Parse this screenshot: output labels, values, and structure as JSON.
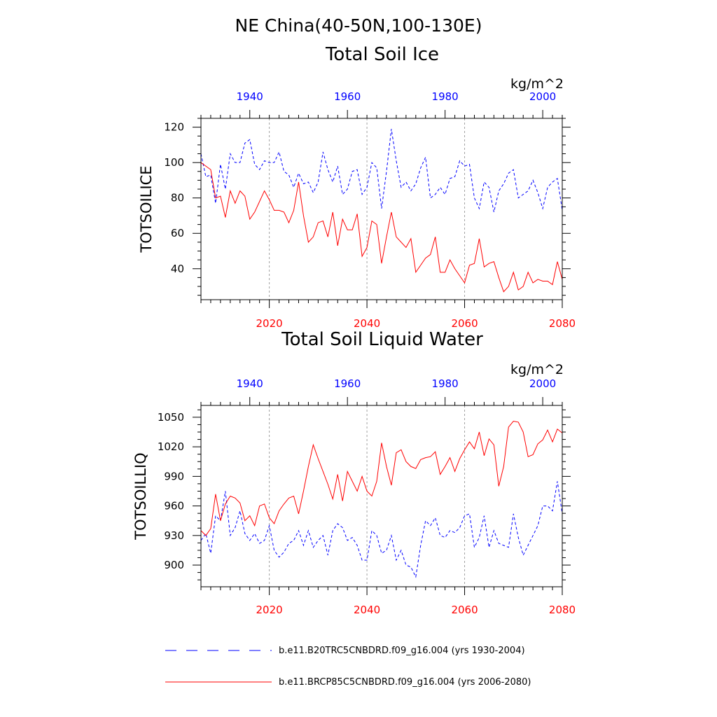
{
  "figure": {
    "region_title": "NE China(40-50N,100-130E)"
  },
  "colors": {
    "historical": "#0000ff",
    "future": "#ff0000",
    "axis": "#000000",
    "grid": "#a0a0a0"
  },
  "legend": {
    "historical_label": "b.e11.B20TRC5CNBDRD.f09_g16.004 (yrs 1930-2004)",
    "future_label": "b.e11.BRCP85C5CNBDRD.f09_g16.004 (yrs 2006-2080)"
  },
  "chart_data": [
    {
      "type": "line",
      "title": "Total Soil Ice",
      "units": "kg/m^2",
      "ylabel": "TOTSOILICE",
      "ylim": [
        22.5,
        125
      ],
      "yticks": [
        40,
        60,
        80,
        100,
        120
      ],
      "bottom_axis": {
        "xlim": [
          2006,
          2080
        ],
        "ticks": [
          2020,
          2040,
          2060,
          2080
        ]
      },
      "top_axis": {
        "xlim": [
          1930,
          2004
        ],
        "ticks": [
          1940,
          1960,
          1980,
          2000
        ]
      },
      "grid_x": [
        2020,
        2040,
        2060
      ],
      "series": [
        {
          "name": "b.e11.B20TRC5CNBDRD.f09_g16.004 (yrs 1930-2004)",
          "axis": "top",
          "style": "dashed",
          "color": "#0000ff",
          "x": [
            1930,
            1931,
            1932,
            1933,
            1934,
            1935,
            1936,
            1937,
            1938,
            1939,
            1940,
            1941,
            1942,
            1943,
            1944,
            1945,
            1946,
            1947,
            1948,
            1949,
            1950,
            1951,
            1952,
            1953,
            1954,
            1955,
            1956,
            1957,
            1958,
            1959,
            1960,
            1961,
            1962,
            1963,
            1964,
            1965,
            1966,
            1967,
            1968,
            1969,
            1970,
            1971,
            1972,
            1973,
            1974,
            1975,
            1976,
            1977,
            1978,
            1979,
            1980,
            1981,
            1982,
            1983,
            1984,
            1985,
            1986,
            1987,
            1988,
            1989,
            1990,
            1991,
            1992,
            1993,
            1994,
            1995,
            1996,
            1997,
            1998,
            1999,
            2000,
            2001,
            2002,
            2003,
            2004
          ],
          "values": [
            105,
            92,
            93,
            77,
            99,
            85,
            105,
            100,
            100,
            111,
            113,
            99,
            96,
            101,
            100,
            100,
            106,
            95,
            93,
            86,
            94,
            88,
            89,
            83,
            89,
            106,
            96,
            89,
            98,
            82,
            85,
            95,
            96,
            82,
            86,
            100,
            97,
            74,
            95,
            119,
            101,
            86,
            89,
            84,
            88,
            97,
            103,
            80,
            82,
            86,
            82,
            91,
            92,
            101,
            98,
            99,
            80,
            74,
            89,
            86,
            72,
            84,
            88,
            94,
            96,
            80,
            82,
            84,
            90,
            83,
            74,
            86,
            89,
            91,
            73
          ]
        },
        {
          "name": "b.e11.BRCP85C5CNBDRD.f09_g16.004 (yrs 2006-2080)",
          "axis": "bottom",
          "style": "solid",
          "color": "#ff0000",
          "x": [
            2006,
            2007,
            2008,
            2009,
            2010,
            2011,
            2012,
            2013,
            2014,
            2015,
            2016,
            2017,
            2018,
            2019,
            2020,
            2021,
            2022,
            2023,
            2024,
            2025,
            2026,
            2027,
            2028,
            2029,
            2030,
            2031,
            2032,
            2033,
            2034,
            2035,
            2036,
            2037,
            2038,
            2039,
            2040,
            2041,
            2042,
            2043,
            2044,
            2045,
            2046,
            2047,
            2048,
            2049,
            2050,
            2051,
            2052,
            2053,
            2054,
            2055,
            2056,
            2057,
            2058,
            2059,
            2060,
            2061,
            2062,
            2063,
            2064,
            2065,
            2066,
            2067,
            2068,
            2069,
            2070,
            2071,
            2072,
            2073,
            2074,
            2075,
            2076,
            2077,
            2078,
            2079,
            2080
          ],
          "values": [
            100,
            98,
            96,
            80,
            81,
            69,
            84,
            77,
            84,
            81,
            68,
            72,
            78,
            84,
            79,
            73,
            73,
            72,
            66,
            73,
            89,
            70,
            55,
            58,
            66,
            67,
            58,
            72,
            53,
            68,
            62,
            62,
            71,
            47,
            52,
            67,
            65,
            43,
            58,
            72,
            58,
            55,
            52,
            57,
            38,
            42,
            46,
            48,
            58,
            38,
            38,
            45,
            40,
            36,
            32,
            42,
            43,
            57,
            41,
            43,
            44,
            35,
            27,
            30,
            38,
            28,
            30,
            38,
            32,
            34,
            33,
            33,
            31,
            44,
            34
          ]
        }
      ]
    },
    {
      "type": "line",
      "title": "Total Soil Liquid Water",
      "units": "kg/m^2",
      "ylabel": "TOTSOILLIQ",
      "ylim": [
        878,
        1062
      ],
      "yticks": [
        900,
        930,
        960,
        990,
        1020,
        1050
      ],
      "bottom_axis": {
        "xlim": [
          2006,
          2080
        ],
        "ticks": [
          2020,
          2040,
          2060,
          2080
        ]
      },
      "top_axis": {
        "xlim": [
          1930,
          2004
        ],
        "ticks": [
          1940,
          1960,
          1980,
          2000
        ]
      },
      "grid_x": [
        2020,
        2040,
        2060
      ],
      "series": [
        {
          "name": "b.e11.B20TRC5CNBDRD.f09_g16.004 (yrs 1930-2004)",
          "axis": "top",
          "style": "dashed",
          "color": "#0000ff",
          "x": [
            1930,
            1931,
            1932,
            1933,
            1934,
            1935,
            1936,
            1937,
            1938,
            1939,
            1940,
            1941,
            1942,
            1943,
            1944,
            1945,
            1946,
            1947,
            1948,
            1949,
            1950,
            1951,
            1952,
            1953,
            1954,
            1955,
            1956,
            1957,
            1958,
            1959,
            1960,
            1961,
            1962,
            1963,
            1964,
            1965,
            1966,
            1967,
            1968,
            1969,
            1970,
            1971,
            1972,
            1973,
            1974,
            1975,
            1976,
            1977,
            1978,
            1979,
            1980,
            1981,
            1982,
            1983,
            1984,
            1985,
            1986,
            1987,
            1988,
            1989,
            1990,
            1991,
            1992,
            1993,
            1994,
            1995,
            1996,
            1997,
            1998,
            1999,
            2000,
            2001,
            2002,
            2003,
            2004
          ],
          "values": [
            925,
            932,
            912,
            950,
            945,
            975,
            930,
            938,
            955,
            932,
            925,
            932,
            922,
            925,
            940,
            915,
            908,
            913,
            922,
            925,
            935,
            920,
            935,
            918,
            925,
            930,
            910,
            935,
            942,
            938,
            925,
            928,
            920,
            905,
            905,
            935,
            930,
            912,
            915,
            930,
            905,
            915,
            900,
            898,
            888,
            920,
            945,
            940,
            948,
            930,
            928,
            935,
            933,
            938,
            950,
            952,
            918,
            928,
            950,
            918,
            935,
            922,
            920,
            918,
            952,
            928,
            910,
            920,
            930,
            940,
            960,
            960,
            955,
            985,
            952
          ]
        },
        {
          "name": "b.e11.BRCP85C5CNBDRD.f09_g16.004 (yrs 2006-2080)",
          "axis": "bottom",
          "style": "solid",
          "color": "#ff0000",
          "x": [
            2006,
            2007,
            2008,
            2009,
            2010,
            2011,
            2012,
            2013,
            2014,
            2015,
            2016,
            2017,
            2018,
            2019,
            2020,
            2021,
            2022,
            2023,
            2024,
            2025,
            2026,
            2027,
            2028,
            2029,
            2030,
            2031,
            2032,
            2033,
            2034,
            2035,
            2036,
            2037,
            2038,
            2039,
            2040,
            2041,
            2042,
            2043,
            2044,
            2045,
            2046,
            2047,
            2048,
            2049,
            2050,
            2051,
            2052,
            2053,
            2054,
            2055,
            2056,
            2057,
            2058,
            2059,
            2060,
            2061,
            2062,
            2063,
            2064,
            2065,
            2066,
            2067,
            2068,
            2069,
            2070,
            2071,
            2072,
            2073,
            2074,
            2075,
            2076,
            2077,
            2078,
            2079,
            2080
          ],
          "values": [
            935,
            930,
            937,
            972,
            945,
            962,
            970,
            968,
            963,
            945,
            950,
            940,
            960,
            962,
            948,
            942,
            955,
            962,
            968,
            970,
            952,
            975,
            1000,
            1022,
            1008,
            995,
            982,
            967,
            992,
            965,
            995,
            985,
            975,
            990,
            975,
            970,
            985,
            1024,
            1000,
            981,
            1014,
            1017,
            1005,
            1000,
            998,
            1007,
            1009,
            1010,
            1015,
            992,
            1000,
            1009,
            995,
            1008,
            1017,
            1025,
            1018,
            1035,
            1011,
            1028,
            1022,
            980,
            1000,
            1040,
            1046,
            1045,
            1035,
            1010,
            1012,
            1023,
            1027,
            1037,
            1025,
            1038,
            1034
          ]
        }
      ]
    }
  ]
}
